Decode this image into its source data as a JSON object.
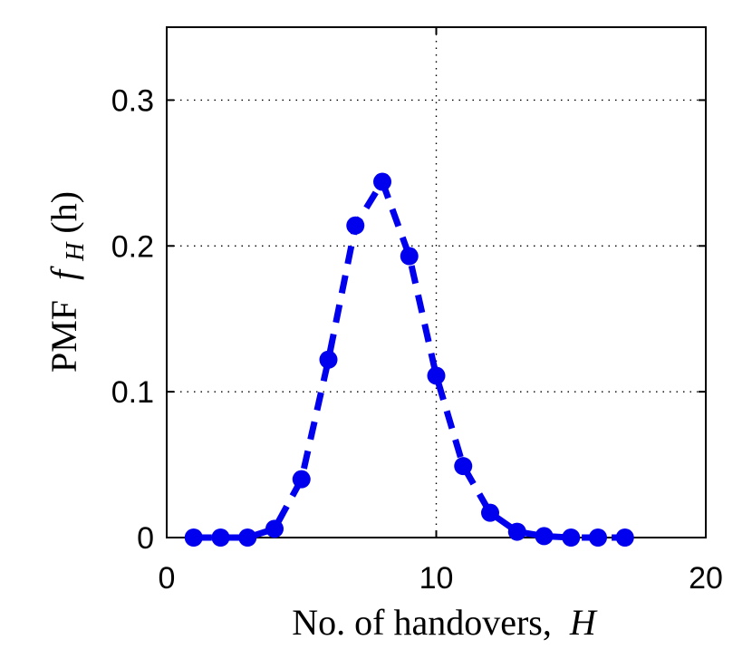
{
  "chart_data": {
    "type": "line",
    "xlabel": {
      "text": "No. of handovers,",
      "symbol": "H"
    },
    "ylabel": {
      "prefix": "PMF",
      "func": "f",
      "sub": "H",
      "arg": "(h)"
    },
    "xlim": [
      0,
      20
    ],
    "ylim": [
      0,
      0.35
    ],
    "xticks": [
      0,
      10,
      20
    ],
    "xtick_labels": [
      "0",
      "10",
      "20"
    ],
    "yticks": [
      0,
      0.1,
      0.2,
      0.3
    ],
    "ytick_labels": [
      "0",
      "0.1",
      "0.2",
      "0.3"
    ],
    "grid": true,
    "series": [
      {
        "color": "#0000ee",
        "line_style": "dashed",
        "marker": "circle",
        "x": [
          1,
          2,
          3,
          4,
          5,
          6,
          7,
          8,
          9,
          10,
          11,
          12,
          13,
          14,
          15,
          16,
          17
        ],
        "y": [
          0.0,
          0.0,
          0.0,
          0.006,
          0.04,
          0.122,
          0.214,
          0.244,
          0.193,
          0.111,
          0.049,
          0.017,
          0.004,
          0.001,
          0.0,
          0.0,
          0.0
        ]
      }
    ]
  }
}
